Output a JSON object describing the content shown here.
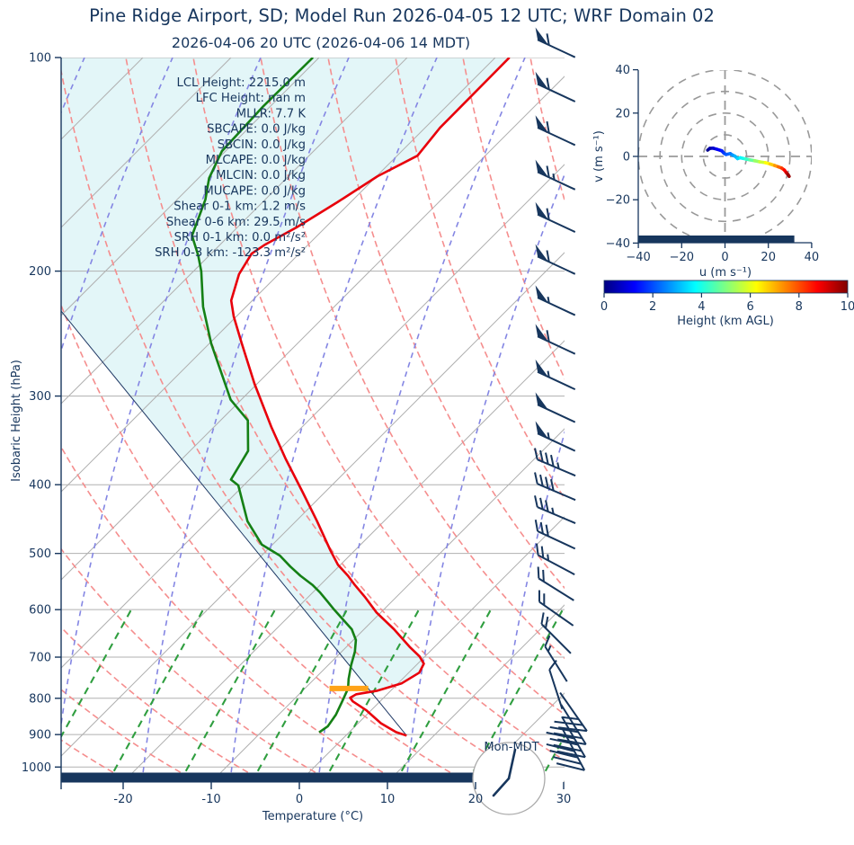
{
  "title": "Pine Ridge Airport, SD; Model Run 2026-04-05 12 UTC; WRF Domain 02",
  "subtitle": "2026-04-06 20 UTC  (2026-04-06 14 MDT)",
  "colors": {
    "text_navy": "#17365d",
    "temperature_line": "#e8000b",
    "dewpoint_line": "#158015",
    "parcel_line": "#1f3864",
    "cape_fill": "#e3f6f8",
    "isotherm_gray": "#b0b0b0",
    "dry_adiabat": "#f58e8e",
    "moist_adiabat": "#8486e3",
    "mixing_line": "#2f9e3f",
    "lcl_marker": "#ffa318",
    "surface_bar": "#17365d",
    "grid_dash_gray": "#999999"
  },
  "skewt": {
    "xlabel": "Temperature (°C)",
    "ylabel": "Isobaric Height (hPa)",
    "pressure_ticks": [
      100,
      200,
      300,
      400,
      500,
      600,
      700,
      800,
      900,
      1000
    ],
    "temp_ticks": [
      -20,
      -10,
      0,
      10,
      20,
      30
    ],
    "surface_time_label": "Mon-MDT",
    "stats": [
      {
        "label": "LCL Height",
        "value": "2215.0 m"
      },
      {
        "label": "LFC Height",
        "value": "nan m"
      },
      {
        "label": "MLLR",
        "value": "7.7 K"
      },
      {
        "label": "SBCAPE",
        "value": "0.0 J/kg"
      },
      {
        "label": "SBCIN",
        "value": "0.0 J/kg"
      },
      {
        "label": "MLCAPE",
        "value": "0.0 J/kg"
      },
      {
        "label": "MLCIN",
        "value": "0.0 J/kg"
      },
      {
        "label": "MUCAPE",
        "value": "0.0 J/kg"
      },
      {
        "label": "Shear 0-1 km",
        "value": "1.2 m/s"
      },
      {
        "label": "Shear 0-6 km",
        "value": "29.5 m/s"
      },
      {
        "label": "SRH 0-1 km",
        "value": "0.0 m²/s²"
      },
      {
        "label": "SRH 0-3 km",
        "value": "-123.3 m²/s²"
      }
    ]
  },
  "hodograph": {
    "xlabel": "u (m s⁻¹)",
    "ylabel": "v (m s⁻¹)",
    "axis_ticks": [
      -40,
      -20,
      0,
      20,
      40
    ],
    "range": [
      -40,
      40
    ],
    "rings": [
      10,
      20,
      30,
      40
    ]
  },
  "colorbar": {
    "label": "Height (km AGL)",
    "ticks": [
      0,
      2,
      4,
      6,
      8,
      10
    ],
    "range": [
      0,
      10
    ],
    "colormap": "jet"
  },
  "chart_data": [
    {
      "type": "line",
      "name": "skewt_sounding",
      "skew_deg": 45,
      "x_axis": {
        "label": "Temperature (°C)",
        "range_at_surface": [
          -27,
          30
        ],
        "ticks": [
          -20,
          -10,
          0,
          10,
          20,
          30
        ]
      },
      "y_axis": {
        "label": "Isobaric Height (hPa)",
        "scale": "log",
        "range": [
          100,
          1050
        ],
        "ticks": [
          100,
          200,
          300,
          400,
          500,
          600,
          700,
          800,
          900,
          1000
        ]
      },
      "series": [
        {
          "name": "temperature",
          "units": [
            "hPa",
            "degC"
          ],
          "points": [
            [
              100,
              -58.4
            ],
            [
              125.6,
              -58.3
            ],
            [
              137.5,
              -57.7
            ],
            [
              147,
              -59.9
            ],
            [
              159.9,
              -61.5
            ],
            [
              173.6,
              -63.3
            ],
            [
              183.5,
              -64.9
            ],
            [
              189,
              -65.4
            ],
            [
              202,
              -64.5
            ],
            [
              220,
              -62.4
            ],
            [
              231.7,
              -60.3
            ],
            [
              251.4,
              -56.6
            ],
            [
              288.3,
              -50.3
            ],
            [
              331.6,
              -43.5
            ],
            [
              367.4,
              -38.3
            ],
            [
              409.3,
              -32.6
            ],
            [
              450.3,
              -27.6
            ],
            [
              495.8,
              -22.7
            ],
            [
              518.6,
              -20.3
            ],
            [
              537.5,
              -17.9
            ],
            [
              553.7,
              -16.1
            ],
            [
              575.6,
              -13.6
            ],
            [
              605.5,
              -10.5
            ],
            [
              639.4,
              -6.6
            ],
            [
              678.3,
              -2.7
            ],
            [
              698.5,
              -0.6
            ],
            [
              715.1,
              0.7
            ],
            [
              736.3,
              1.2
            ],
            [
              762.4,
              0.4
            ],
            [
              780.4,
              -1.5
            ],
            [
              789.5,
              -3.5
            ],
            [
              798.7,
              -3.8
            ],
            [
              808,
              -3.1
            ],
            [
              831.3,
              -0.6
            ],
            [
              867.7,
              2.6
            ],
            [
              892.8,
              5.3
            ],
            [
              903,
              6.9
            ]
          ]
        },
        {
          "name": "dewpoint",
          "units": [
            "hPa",
            "degC"
          ],
          "points": [
            [
              100,
              -80.7
            ],
            [
              117.0,
              -80.8
            ],
            [
              135.5,
              -80.4
            ],
            [
              147.9,
              -78.8
            ],
            [
              158.5,
              -76.8
            ],
            [
              178.3,
              -74.2
            ],
            [
              189.9,
              -71.3
            ],
            [
              200.2,
              -69.1
            ],
            [
              224.4,
              -64.9
            ],
            [
              252.9,
              -59.8
            ],
            [
              270.7,
              -56.6
            ],
            [
              303.6,
              -51.2
            ],
            [
              324.7,
              -46.9
            ],
            [
              358.5,
              -43.4
            ],
            [
              393.4,
              -42.1
            ],
            [
              401,
              -40.6
            ],
            [
              450.3,
              -35.5
            ],
            [
              486,
              -31.2
            ],
            [
              503.6,
              -27.9
            ],
            [
              521.6,
              -25.5
            ],
            [
              537.5,
              -23.3
            ],
            [
              553.7,
              -20.9
            ],
            [
              567.2,
              -19.2
            ],
            [
              584.4,
              -17.3
            ],
            [
              600.2,
              -15.6
            ],
            [
              618.5,
              -13.6
            ],
            [
              639.4,
              -11.4
            ],
            [
              662.3,
              -9.7
            ],
            [
              687.7,
              -8.5
            ],
            [
              718.4,
              -7.4
            ],
            [
              751.6,
              -6.1
            ],
            [
              774.8,
              -5.1
            ],
            [
              808,
              -4.3
            ],
            [
              843.7,
              -3.5
            ],
            [
              876,
              -3.1
            ],
            [
              893.6,
              -3.4
            ]
          ]
        },
        {
          "name": "parcel_profile",
          "units": [
            "hPa",
            "degC"
          ],
          "points": [
            [
              227.7,
              -80.5
            ],
            [
              903,
              6.9
            ]
          ]
        }
      ],
      "lcl_marker": {
        "pressure": 775,
        "temp": -5.0,
        "half_width_degC": 2.2
      },
      "wind_barbs": [
        {
          "p": 97,
          "angle": 205,
          "pennants": 1,
          "fulls": 1,
          "halfs": 0
        },
        {
          "p": 112,
          "angle": 205,
          "pennants": 1,
          "fulls": 1,
          "halfs": 0
        },
        {
          "p": 129,
          "angle": 205,
          "pennants": 1,
          "fulls": 1,
          "halfs": 0
        },
        {
          "p": 149,
          "angle": 205,
          "pennants": 1,
          "fulls": 1,
          "halfs": 1
        },
        {
          "p": 171,
          "angle": 205,
          "pennants": 1,
          "fulls": 1,
          "halfs": 0
        },
        {
          "p": 196,
          "angle": 205,
          "pennants": 1,
          "fulls": 1,
          "halfs": 0
        },
        {
          "p": 224,
          "angle": 205,
          "pennants": 1,
          "fulls": 0,
          "halfs": 1
        },
        {
          "p": 254,
          "angle": 205,
          "pennants": 1,
          "fulls": 1,
          "halfs": 0
        },
        {
          "p": 285,
          "angle": 205,
          "pennants": 1,
          "fulls": 0,
          "halfs": 1
        },
        {
          "p": 317,
          "angle": 205,
          "pennants": 1,
          "fulls": 0,
          "halfs": 0
        },
        {
          "p": 348,
          "angle": 205,
          "pennants": 1,
          "fulls": 0,
          "halfs": 1
        },
        {
          "p": 378,
          "angle": 203,
          "pennants": 0,
          "fulls": 4,
          "halfs": 1
        },
        {
          "p": 409,
          "angle": 203,
          "pennants": 0,
          "fulls": 4,
          "halfs": 0
        },
        {
          "p": 441,
          "angle": 203,
          "pennants": 0,
          "fulls": 3,
          "halfs": 1
        },
        {
          "p": 478,
          "angle": 205,
          "pennants": 0,
          "fulls": 3,
          "halfs": 0
        },
        {
          "p": 518,
          "angle": 208,
          "pennants": 0,
          "fulls": 2,
          "halfs": 1
        },
        {
          "p": 561,
          "angle": 212,
          "pennants": 0,
          "fulls": 2,
          "halfs": 0
        },
        {
          "p": 607,
          "angle": 215,
          "pennants": 0,
          "fulls": 2,
          "halfs": 0
        },
        {
          "p": 658,
          "angle": 225,
          "pennants": 0,
          "fulls": 2,
          "halfs": 0
        },
        {
          "p": 714,
          "angle": 238,
          "pennants": 0,
          "fulls": 1,
          "halfs": 1
        },
        {
          "p": 775,
          "angle": 252,
          "pennants": 0,
          "fulls": 1,
          "halfs": 0
        },
        {
          "p": 836,
          "angle": 55,
          "pennants": 0,
          "fulls": 2,
          "halfs": 1,
          "flip": true
        },
        {
          "p": 871,
          "angle": 58,
          "pennants": 0,
          "fulls": 3,
          "halfs": 0,
          "flip": true
        },
        {
          "p": 907,
          "angle": 60,
          "pennants": 0,
          "fulls": 4,
          "halfs": 0,
          "flip": true
        },
        {
          "p": 945,
          "angle": 62,
          "pennants": 0,
          "fulls": 4,
          "halfs": 0,
          "flip": true
        }
      ]
    },
    {
      "type": "line",
      "name": "hodograph_trace",
      "x_axis": {
        "label": "u (m s⁻¹)",
        "range": [
          -40,
          40
        ],
        "ticks": [
          -40,
          -20,
          0,
          20,
          40
        ]
      },
      "y_axis": {
        "label": "v (m s⁻¹)",
        "range": [
          -40,
          40
        ],
        "ticks": [
          -40,
          -20,
          0,
          20,
          40
        ]
      },
      "rings": [
        10,
        20,
        30,
        40
      ],
      "color_by": "height_km",
      "points": [
        {
          "u": -8.0,
          "v": 2.9,
          "h": 0.0
        },
        {
          "u": -7.0,
          "v": 3.7,
          "h": 0.3
        },
        {
          "u": -5.5,
          "v": 3.8,
          "h": 0.6
        },
        {
          "u": -3.7,
          "v": 3.3,
          "h": 1.0
        },
        {
          "u": -1.5,
          "v": 2.6,
          "h": 1.4
        },
        {
          "u": -0.5,
          "v": 1.5,
          "h": 1.7
        },
        {
          "u": 0.5,
          "v": 0.9,
          "h": 2.0
        },
        {
          "u": 2.4,
          "v": 1.3,
          "h": 2.3
        },
        {
          "u": 3.5,
          "v": 0.6,
          "h": 2.6
        },
        {
          "u": 4.6,
          "v": 0.1,
          "h": 2.9
        },
        {
          "u": 5.8,
          "v": -1.0,
          "h": 3.2
        },
        {
          "u": 7.0,
          "v": -0.6,
          "h": 3.5
        },
        {
          "u": 8.2,
          "v": -0.9,
          "h": 3.8
        },
        {
          "u": 9.6,
          "v": -1.2,
          "h": 4.1
        },
        {
          "u": 11.5,
          "v": -1.6,
          "h": 4.5
        },
        {
          "u": 13.7,
          "v": -2.0,
          "h": 5.0
        },
        {
          "u": 16.0,
          "v": -2.5,
          "h": 5.5
        },
        {
          "u": 18.7,
          "v": -2.9,
          "h": 6.0
        },
        {
          "u": 20.8,
          "v": -3.5,
          "h": 6.5
        },
        {
          "u": 22.9,
          "v": -4.2,
          "h": 7.0
        },
        {
          "u": 24.6,
          "v": -4.8,
          "h": 7.5
        },
        {
          "u": 26.2,
          "v": -5.4,
          "h": 8.0
        },
        {
          "u": 27.4,
          "v": -6.3,
          "h": 8.5
        },
        {
          "u": 28.3,
          "v": -7.5,
          "h": 9.0
        },
        {
          "u": 29.1,
          "v": -8.4,
          "h": 9.5
        },
        {
          "u": 29.6,
          "v": -9.2,
          "h": 10.0
        }
      ],
      "surface_bar_u_range": [
        -40,
        32
      ]
    },
    {
      "type": "legend",
      "name": "height_colorbar",
      "label": "Height (km AGL)",
      "range": [
        0,
        10
      ],
      "ticks": [
        0,
        2,
        4,
        6,
        8,
        10
      ],
      "colormap": "jet"
    }
  ]
}
